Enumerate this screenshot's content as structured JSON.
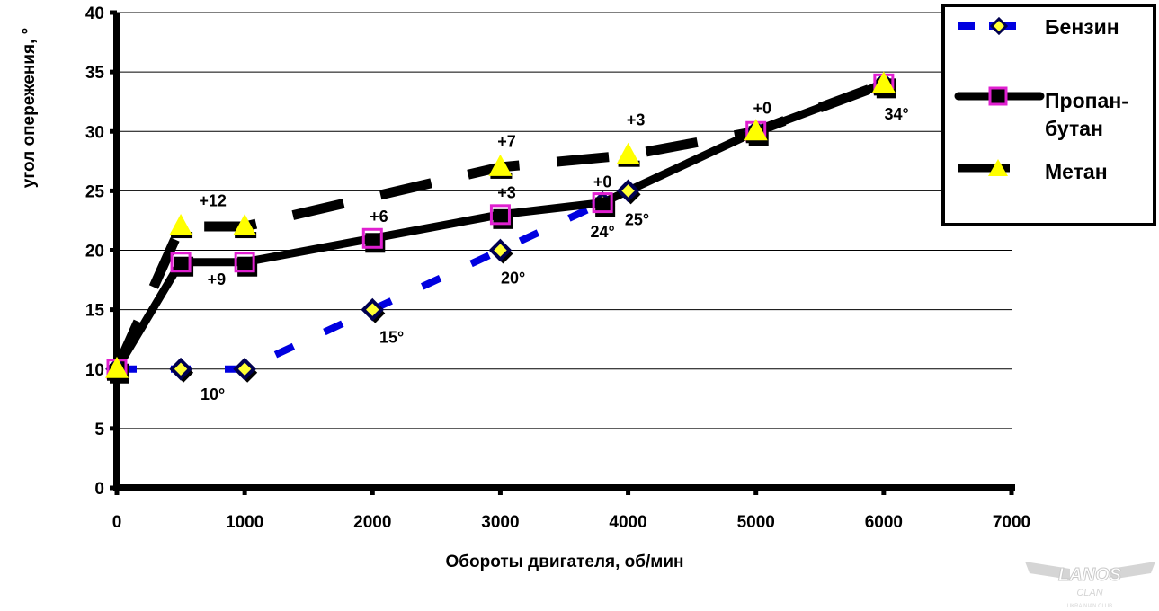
{
  "chart_data": {
    "type": "line",
    "title": "",
    "xlabel": "Обороты двигателя, об/мин",
    "ylabel": "угол опережения, °",
    "xlim": [
      0,
      7000
    ],
    "ylim": [
      0,
      40
    ],
    "xticks": [
      "0",
      "1000",
      "2000",
      "3000",
      "4000",
      "5000",
      "6000",
      "7000"
    ],
    "yticks": [
      "0",
      "5",
      "10",
      "15",
      "20",
      "25",
      "30",
      "35",
      "40"
    ],
    "grid": "horizontal",
    "legend_position": "top-right",
    "series": [
      {
        "name": "Бензин",
        "color": "#0000e0",
        "style": "dotted",
        "marker": "diamond",
        "x": [
          0,
          500,
          1000,
          2000,
          3000,
          3800,
          4000,
          5000,
          6000
        ],
        "y": [
          10,
          10,
          10,
          15,
          20,
          24,
          25,
          30,
          34
        ]
      },
      {
        "name": "Пропан-бутан",
        "color": "#000000",
        "style": "solid",
        "marker": "square",
        "x": [
          0,
          500,
          1000,
          2000,
          3000,
          3800,
          5000,
          6000
        ],
        "y": [
          10,
          19,
          19,
          21,
          23,
          24,
          30,
          34
        ]
      },
      {
        "name": "Метан",
        "color": "#000000",
        "style": "dashed",
        "marker": "triangle",
        "x": [
          0,
          500,
          1000,
          3000,
          4000,
          5000,
          6000
        ],
        "y": [
          10,
          22,
          22,
          27,
          28,
          30,
          34
        ]
      }
    ],
    "legend_labels": [
      "Бензин",
      "Пропан-",
      "бутан",
      "Метан"
    ],
    "annotations": [
      {
        "text": "10°",
        "x": 750,
        "y": 7.4
      },
      {
        "text": "15°",
        "x": 2150,
        "y": 12.2
      },
      {
        "text": "20°",
        "x": 3100,
        "y": 17.2
      },
      {
        "text": "24°",
        "x": 3800,
        "y": 21.1
      },
      {
        "text": "25°",
        "x": 4070,
        "y": 22.1
      },
      {
        "text": "34°",
        "x": 6100,
        "y": 31.0
      },
      {
        "text": "+12",
        "x": 750,
        "y": 23.7
      },
      {
        "text": "+9",
        "x": 780,
        "y": 17.1
      },
      {
        "text": "+6",
        "x": 2050,
        "y": 22.4
      },
      {
        "text": "+7",
        "x": 3050,
        "y": 28.7
      },
      {
        "text": "+3",
        "x": 3050,
        "y": 24.4
      },
      {
        "text": "+0",
        "x": 3800,
        "y": 25.3
      },
      {
        "text": "+3",
        "x": 4060,
        "y": 30.5
      },
      {
        "text": "+0",
        "x": 5050,
        "y": 31.5
      }
    ]
  },
  "watermark": {
    "logo_text": "LANOS CLAN",
    "sub_text": "UKRAINIAN CLUB"
  }
}
